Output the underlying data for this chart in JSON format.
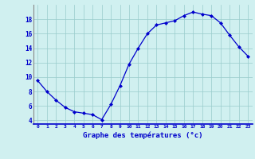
{
  "hours": [
    0,
    1,
    2,
    3,
    4,
    5,
    6,
    7,
    8,
    9,
    10,
    11,
    12,
    13,
    14,
    15,
    16,
    17,
    18,
    19,
    20,
    21,
    22,
    23
  ],
  "temps": [
    9.5,
    8.0,
    6.8,
    5.8,
    5.2,
    5.0,
    4.8,
    4.1,
    6.2,
    8.8,
    11.8,
    14.0,
    16.0,
    17.2,
    17.5,
    17.8,
    18.5,
    19.0,
    18.7,
    18.5,
    17.5,
    15.8,
    14.2,
    12.9
  ],
  "line_color": "#0000cc",
  "marker": "D",
  "marker_size": 2.0,
  "bg_color": "#d0f0f0",
  "grid_color": "#99cccc",
  "xlabel": "Graphe des températures (°c)",
  "xlabel_color": "#0000cc",
  "tick_color": "#0000cc",
  "ylim": [
    3.5,
    20.0
  ],
  "yticks": [
    4,
    6,
    8,
    10,
    12,
    14,
    16,
    18
  ],
  "xlim": [
    -0.5,
    23.5
  ],
  "xticks": [
    0,
    1,
    2,
    3,
    4,
    5,
    6,
    7,
    8,
    9,
    10,
    11,
    12,
    13,
    14,
    15,
    16,
    17,
    18,
    19,
    20,
    21,
    22,
    23
  ],
  "xtick_labels": [
    "0",
    "1",
    "2",
    "3",
    "4",
    "5",
    "6",
    "7",
    "8",
    "9",
    "10",
    "11",
    "12",
    "13",
    "14",
    "15",
    "16",
    "17",
    "18",
    "19",
    "20",
    "21",
    "22",
    "23"
  ]
}
